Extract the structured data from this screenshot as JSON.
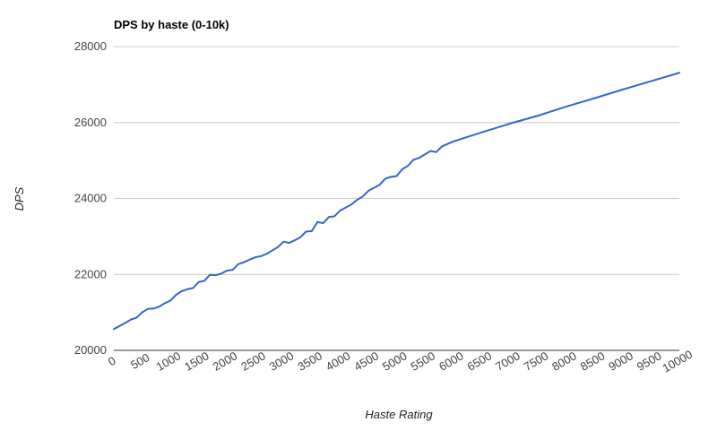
{
  "chart_data": {
    "type": "line",
    "title": "DPS by haste (0-10k)",
    "xlabel": "Haste Rating",
    "ylabel": "DPS",
    "xlim": [
      0,
      10000
    ],
    "ylim": [
      20000,
      28000
    ],
    "x_ticks": [
      0,
      500,
      1000,
      1500,
      2000,
      2500,
      3000,
      3500,
      4000,
      4500,
      5000,
      5500,
      6000,
      6500,
      7000,
      7500,
      8000,
      8500,
      9000,
      9500,
      10000
    ],
    "y_ticks": [
      20000,
      22000,
      24000,
      26000,
      28000
    ],
    "grid": true,
    "legend": "none",
    "colors": {
      "line": "#3366cc",
      "grid": "#cccccc"
    },
    "series": [
      {
        "x": [
          0,
          100,
          200,
          300,
          400,
          500,
          600,
          700,
          800,
          900,
          1000,
          1100,
          1200,
          1300,
          1400,
          1500,
          1600,
          1700,
          1800,
          1900,
          2000,
          2100,
          2200,
          2300,
          2400,
          2500,
          2600,
          2700,
          2800,
          2900,
          3000,
          3100,
          3200,
          3300,
          3400,
          3500,
          3600,
          3700,
          3800,
          3900,
          4000,
          4100,
          4200,
          4300,
          4400,
          4500,
          4600,
          4700,
          4800,
          4900,
          5000,
          5100,
          5200,
          5300,
          5400,
          5500,
          5600,
          5700,
          5800,
          6000,
          6500,
          7000,
          7500,
          8000,
          8500,
          9000,
          9500,
          10000
        ],
        "values": [
          20560,
          20640,
          20720,
          20810,
          20860,
          21000,
          21090,
          21100,
          21150,
          21240,
          21310,
          21460,
          21560,
          21610,
          21640,
          21800,
          21830,
          21990,
          21980,
          22020,
          22100,
          22120,
          22270,
          22320,
          22390,
          22450,
          22480,
          22540,
          22630,
          22720,
          22860,
          22830,
          22900,
          22980,
          23130,
          23140,
          23380,
          23350,
          23510,
          23530,
          23680,
          23760,
          23840,
          23960,
          24050,
          24200,
          24280,
          24360,
          24520,
          24570,
          24590,
          24770,
          24860,
          25020,
          25070,
          25160,
          25250,
          25220,
          25370,
          25500,
          25740,
          25970,
          26180,
          26420,
          26640,
          26870,
          27090,
          27310
        ]
      }
    ]
  }
}
